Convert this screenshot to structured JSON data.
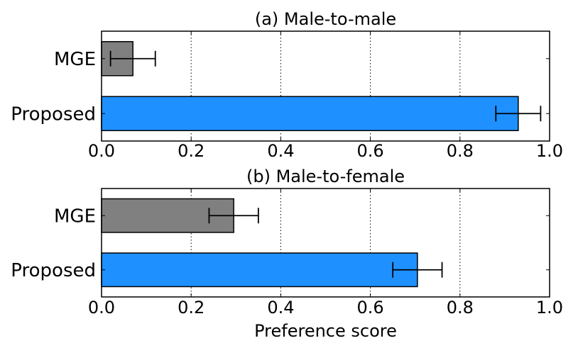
{
  "chart_data": [
    {
      "type": "bar",
      "orientation": "horizontal",
      "title": "(a) Male-to-male",
      "categories": [
        "MGE",
        "Proposed"
      ],
      "values": [
        0.07,
        0.93
      ],
      "error": [
        0.05,
        0.05
      ],
      "colors": [
        "#808080",
        "#1e90ff"
      ],
      "xlim": [
        0.0,
        1.0
      ],
      "xticks": [
        "0.0",
        "0.2",
        "0.4",
        "0.6",
        "0.8",
        "1.0"
      ],
      "xlabel": "",
      "grid": "vertical dotted"
    },
    {
      "type": "bar",
      "orientation": "horizontal",
      "title": "(b) Male-to-female",
      "categories": [
        "MGE",
        "Proposed"
      ],
      "values": [
        0.295,
        0.705
      ],
      "error": [
        0.055,
        0.055
      ],
      "colors": [
        "#808080",
        "#1e90ff"
      ],
      "xlim": [
        0.0,
        1.0
      ],
      "xticks": [
        "0.0",
        "0.2",
        "0.4",
        "0.6",
        "0.8",
        "1.0"
      ],
      "xlabel": "Preference score",
      "grid": "vertical dotted"
    }
  ]
}
